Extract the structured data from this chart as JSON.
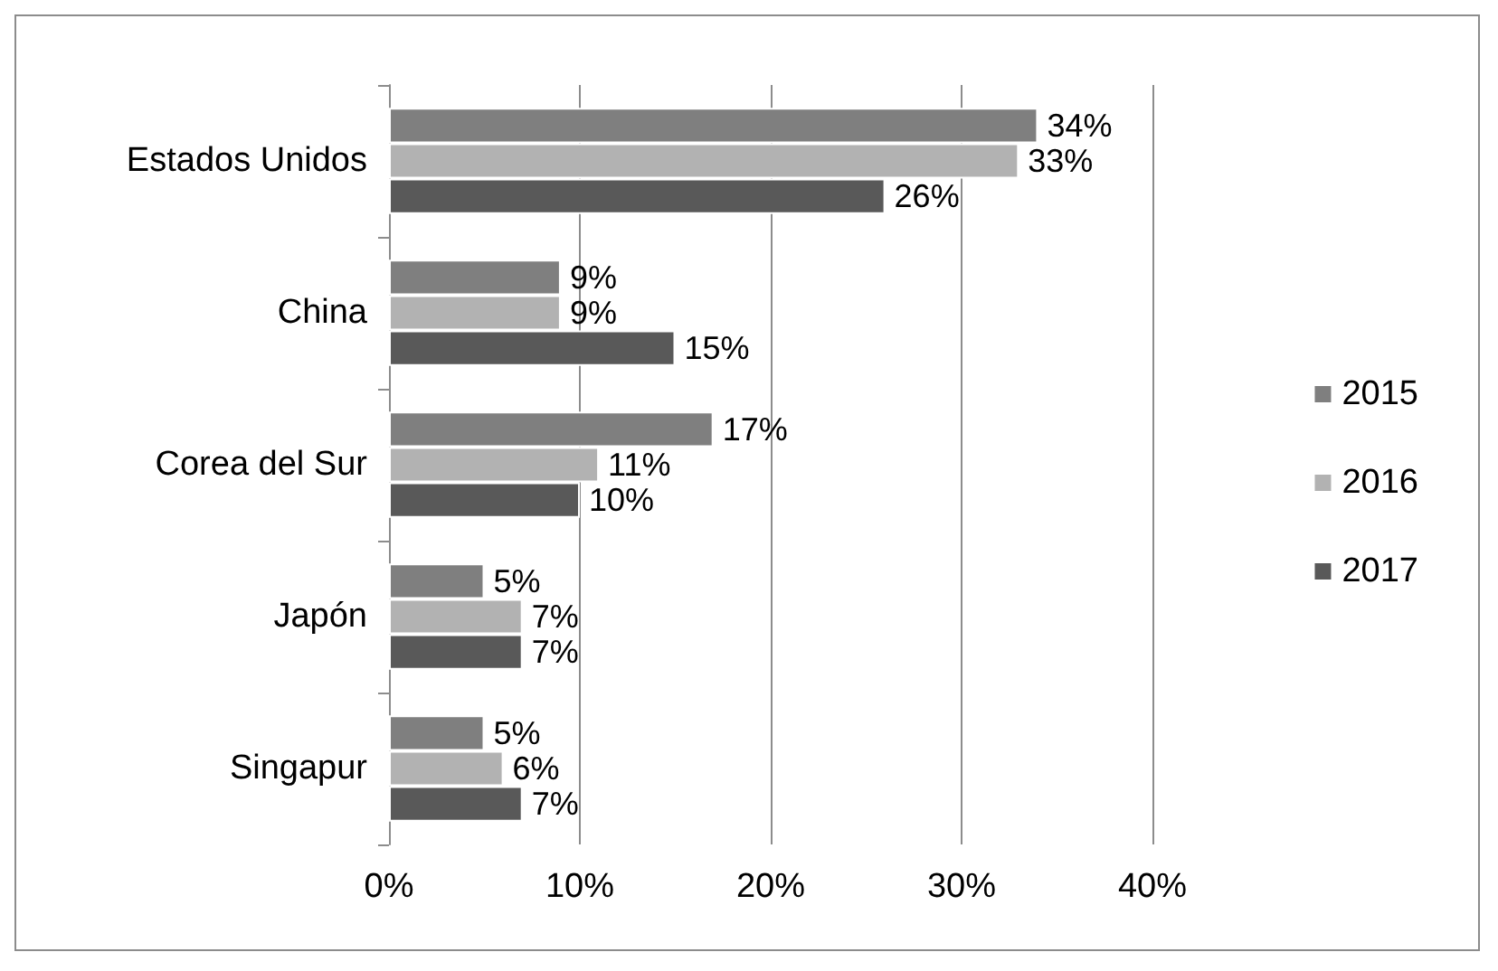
{
  "chart_data": {
    "type": "bar",
    "orientation": "horizontal",
    "categories": [
      "Estados Unidos",
      "China",
      "Corea del Sur",
      "Japón",
      "Singapur"
    ],
    "series": [
      {
        "name": "2015",
        "color": "#7f7f7f",
        "values": [
          34,
          9,
          17,
          5,
          5
        ],
        "value_labels": [
          "34%",
          "9%",
          "17%",
          "5%",
          "5%"
        ]
      },
      {
        "name": "2016",
        "color": "#b2b2b2",
        "values": [
          33,
          9,
          11,
          7,
          6
        ],
        "value_labels": [
          "33%",
          "9%",
          "11%",
          "7%",
          "6%"
        ]
      },
      {
        "name": "2017",
        "color": "#595959",
        "values": [
          26,
          15,
          10,
          7,
          7
        ],
        "value_labels": [
          "26%",
          "15%",
          "10%",
          "7%",
          "7%"
        ]
      }
    ],
    "xlim": [
      0,
      40
    ],
    "xticks": [
      {
        "value": 0,
        "label": "0%"
      },
      {
        "value": 10,
        "label": "10%"
      },
      {
        "value": 20,
        "label": "20%"
      },
      {
        "value": 30,
        "label": "30%"
      },
      {
        "value": 40,
        "label": "40%"
      }
    ],
    "grid": "x",
    "legend": "right"
  }
}
